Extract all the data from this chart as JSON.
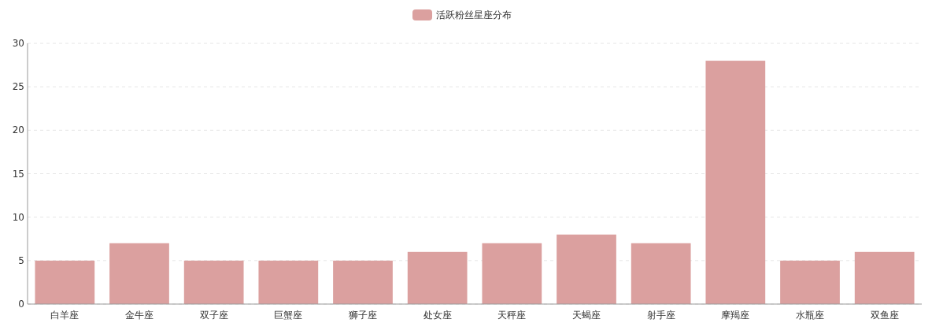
{
  "chart_data": {
    "type": "bar",
    "categories": [
      "白羊座",
      "金牛座",
      "双子座",
      "巨蟹座",
      "狮子座",
      "处女座",
      "天秤座",
      "天蝎座",
      "射手座",
      "摩羯座",
      "水瓶座",
      "双鱼座"
    ],
    "series": [
      {
        "name": "活跃粉丝星座分布",
        "color": "#dba09f",
        "values": [
          5,
          7,
          5,
          5,
          5,
          6,
          7,
          8,
          7,
          28,
          5,
          6
        ]
      }
    ],
    "ylim": [
      0,
      30
    ],
    "yticks": [
      0,
      5,
      10,
      15,
      20,
      25,
      30
    ],
    "grid": "y",
    "legend": "top"
  }
}
